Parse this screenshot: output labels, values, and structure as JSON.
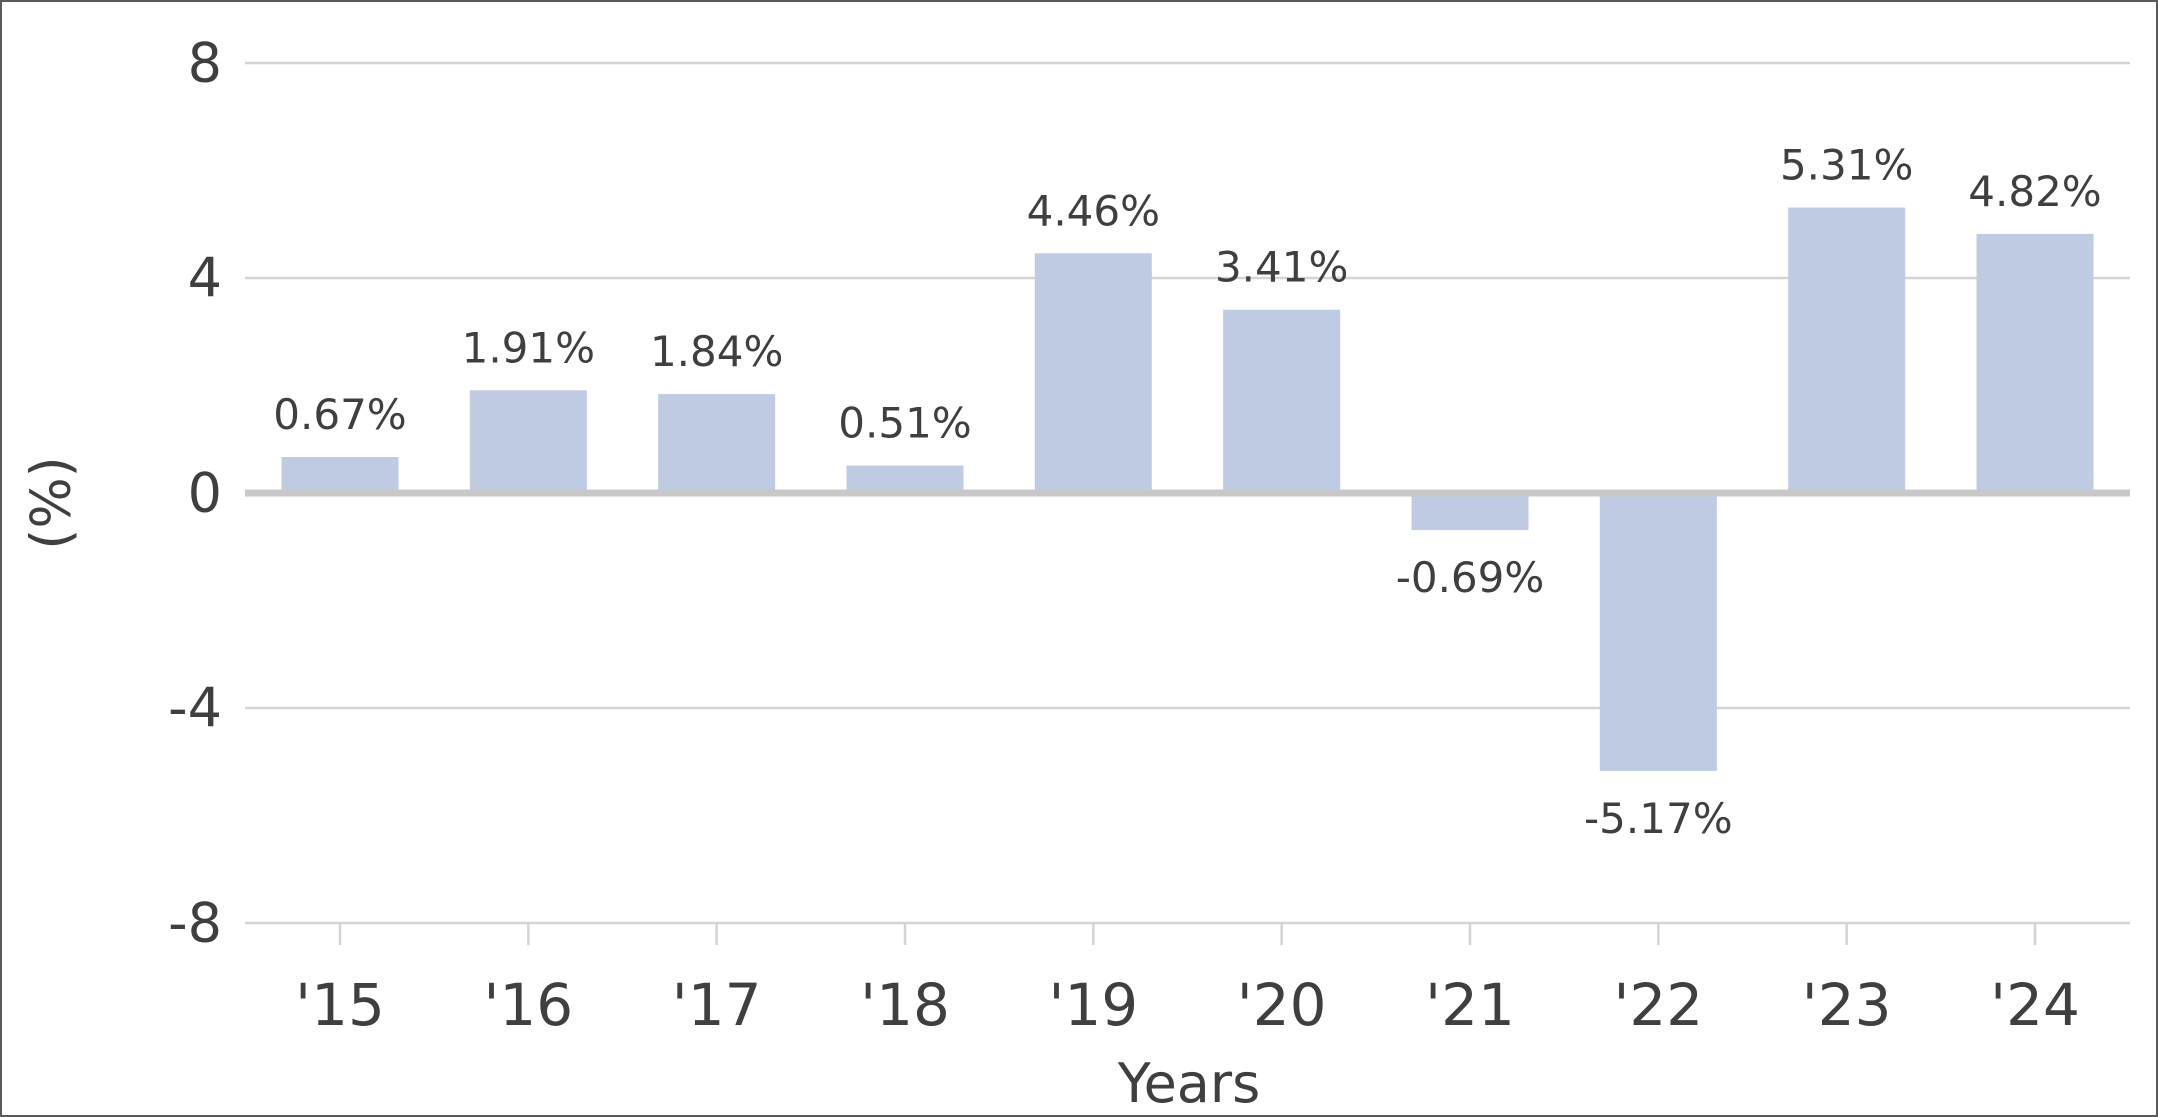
{
  "chart_data": {
    "type": "bar",
    "categories": [
      "'15",
      "'16",
      "'17",
      "'18",
      "'19",
      "'20",
      "'21",
      "'22",
      "'23",
      "'24"
    ],
    "values": [
      0.67,
      1.91,
      1.84,
      0.51,
      4.46,
      3.41,
      -0.69,
      -5.17,
      5.31,
      4.82
    ],
    "data_labels": [
      "0.67%",
      "1.91%",
      "1.84%",
      "0.51%",
      "4.46%",
      "3.41%",
      "-0.69%",
      "-5.17%",
      "5.31%",
      "4.82%"
    ],
    "xlabel": "Years",
    "ylabel": "(%)",
    "ylim": [
      -8,
      8
    ],
    "yticks": [
      8,
      4,
      0,
      -4,
      -8
    ],
    "ytick_labels": [
      "8",
      "4",
      "0",
      "-4",
      "-8"
    ],
    "grid": true,
    "legend": "none",
    "colors": {
      "bar": "#bfcbe3",
      "grid": "#d4d4d4",
      "zero_line": "#c8c8c8",
      "text": "#3f3f3f",
      "border": "#5a5a5a"
    }
  }
}
